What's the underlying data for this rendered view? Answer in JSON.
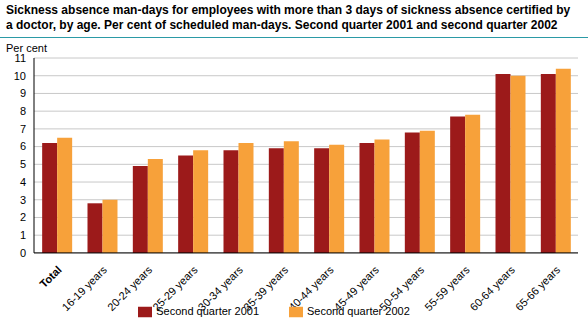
{
  "chart_data": {
    "type": "bar",
    "title": "Sickness absence man-days for employees with more than 3 days of sickness absence certified by a doctor, by age. Per cent of scheduled man-days. Second quarter 2001 and second quarter 2002",
    "y_label": "Per cent",
    "categories": [
      "Total",
      "16-19 years",
      "20-24 years",
      "25-29 years",
      "30-34 years",
      "35-39 years",
      "40-44 years",
      "45-49 years",
      "50-54 years",
      "55-59 years",
      "60-64 years",
      "65-66 years"
    ],
    "series": [
      {
        "name": "Second quarter 2001",
        "color": "#9c1a1a",
        "values": [
          6.2,
          2.8,
          4.9,
          5.5,
          5.8,
          5.9,
          5.9,
          6.2,
          6.8,
          7.7,
          10.1,
          10.1
        ]
      },
      {
        "name": "Second quarter 2002",
        "color": "#f7a13a",
        "values": [
          6.5,
          3.0,
          5.3,
          5.8,
          6.2,
          6.3,
          6.1,
          6.4,
          6.9,
          7.8,
          10.0,
          10.4
        ]
      }
    ],
    "ylim": [
      0,
      11
    ],
    "yticks": [
      0,
      1,
      2,
      3,
      4,
      5,
      6,
      7,
      8,
      9,
      10,
      11
    ],
    "grid": true,
    "legend": "bottom"
  }
}
